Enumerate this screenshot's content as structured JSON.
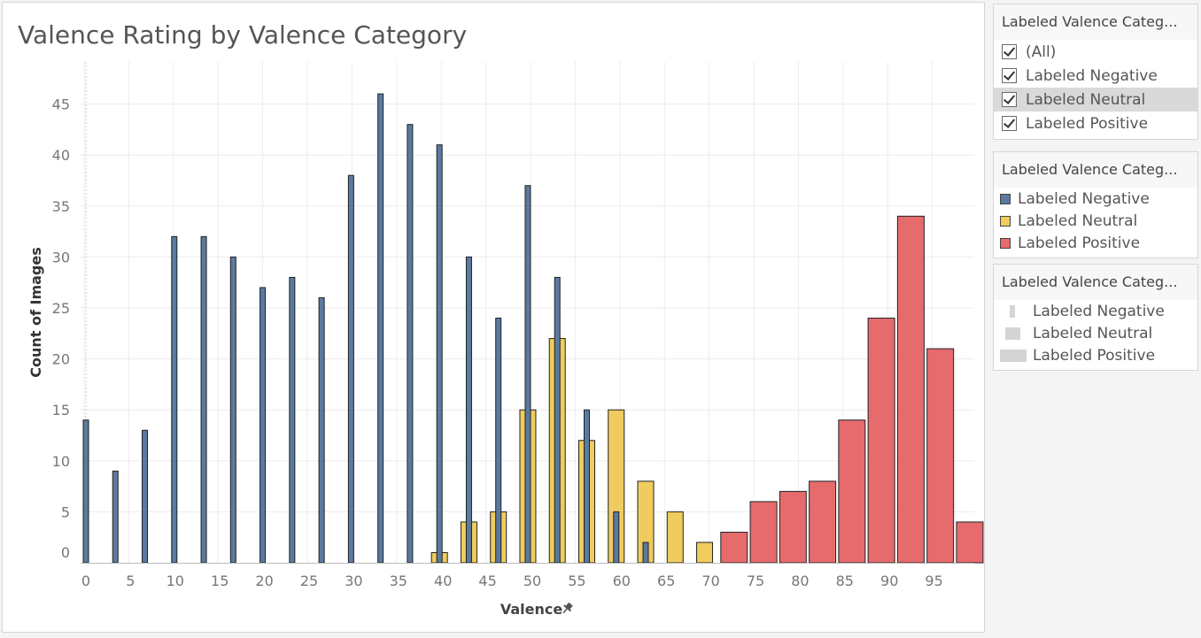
{
  "colors": {
    "negative": "#5b7aa0",
    "neutral": "#f0cc5e",
    "positive": "#e56b6d",
    "grid": "#ececec",
    "tick_text": "#777777"
  },
  "filter_card": {
    "header": "Labeled Valence Categ...",
    "items": [
      {
        "label": "(All)",
        "checked": true
      },
      {
        "label": "Labeled Negative",
        "checked": true
      },
      {
        "label": "Labeled Neutral",
        "checked": true
      },
      {
        "label": "Labeled Positive",
        "checked": true
      }
    ]
  },
  "color_legend": {
    "header": "Labeled Valence Categ...",
    "items": [
      {
        "label": "Labeled Negative",
        "color": "#5b7aa0"
      },
      {
        "label": "Labeled Neutral",
        "color": "#f0cc5e"
      },
      {
        "label": "Labeled Positive",
        "color": "#e56b6d"
      }
    ]
  },
  "size_legend": {
    "header": "Labeled Valence Categ...",
    "items": [
      {
        "label": "Labeled Negative"
      },
      {
        "label": "Labeled Neutral"
      },
      {
        "label": "Labeled Positive"
      }
    ]
  },
  "chart_data": {
    "type": "bar",
    "title": "Valence Rating by Valence Category",
    "xlabel": "Valence",
    "ylabel": "Count of Images",
    "xlim": [
      0,
      100
    ],
    "ylim": [
      0,
      46
    ],
    "x_ticks": [
      0,
      5,
      10,
      15,
      20,
      25,
      30,
      35,
      40,
      45,
      50,
      55,
      60,
      65,
      70,
      75,
      80,
      85,
      90,
      95
    ],
    "y_ticks": [
      0,
      5,
      10,
      15,
      20,
      25,
      30,
      35,
      40,
      45
    ],
    "grid": true,
    "legend_position": "right",
    "series": [
      {
        "name": "Labeled Negative",
        "x": [
          0.0,
          3.3,
          6.6,
          9.9,
          13.2,
          16.5,
          19.8,
          23.1,
          26.4,
          29.7,
          33.0,
          36.3,
          39.6,
          42.9,
          46.2,
          49.5,
          52.8,
          56.1,
          59.4,
          62.7
        ],
        "values": [
          14,
          9,
          13,
          32,
          32,
          30,
          27,
          28,
          26,
          38,
          46,
          43,
          41,
          30,
          24,
          37,
          28,
          15,
          5,
          2
        ]
      },
      {
        "name": "Labeled Neutral",
        "x": [
          39.6,
          42.9,
          46.2,
          49.5,
          52.8,
          56.1,
          59.4,
          62.7,
          66.0,
          69.3
        ],
        "values": [
          1,
          4,
          5,
          15,
          22,
          12,
          15,
          8,
          5,
          2
        ]
      },
      {
        "name": "Labeled Positive",
        "x": [
          72.6,
          75.9,
          79.2,
          82.5,
          85.8,
          89.1,
          92.4,
          95.7,
          99.0
        ],
        "values": [
          3,
          6,
          7,
          8,
          14,
          24,
          34,
          21,
          4
        ]
      }
    ]
  }
}
